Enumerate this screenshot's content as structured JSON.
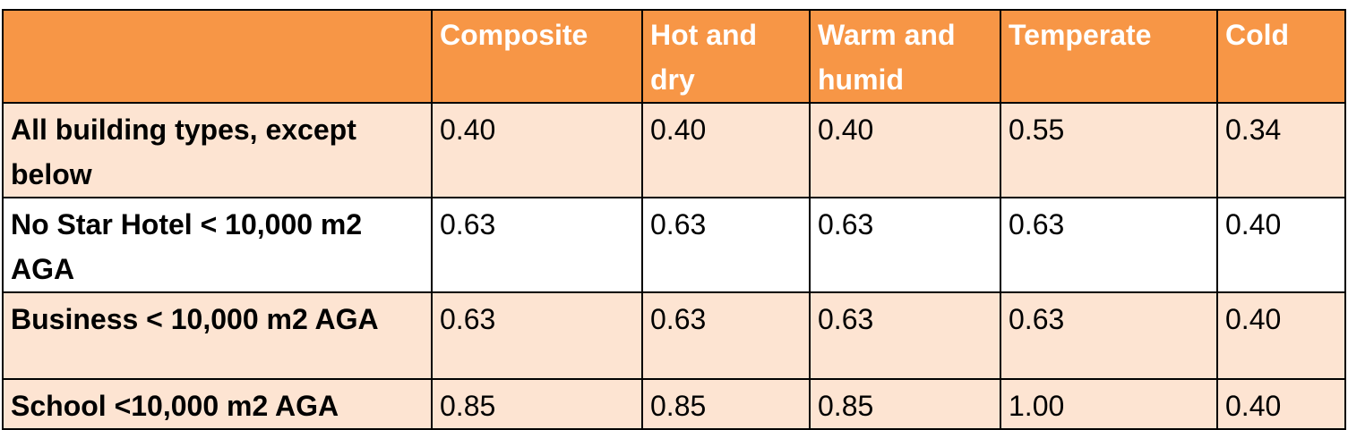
{
  "table": {
    "columns": [
      "",
      "Composite",
      "Hot and dry",
      "Warm and humid",
      "Temperate",
      "Cold"
    ],
    "rows": [
      {
        "label": "All building types, except below",
        "values": [
          "0.40",
          "0.40",
          "0.40",
          "0.55",
          "0.34"
        ]
      },
      {
        "label": "No Star Hotel < 10,000 m2 AGA",
        "values": [
          "0.63",
          "0.63",
          "0.63",
          "0.63",
          "0.40"
        ]
      },
      {
        "label": "Business < 10,000 m2 AGA",
        "values": [
          "0.63",
          "0.63",
          "0.63",
          "0.63",
          "0.40"
        ]
      },
      {
        "label": "School <10,000 m2 AGA",
        "values": [
          "0.85",
          "0.85",
          "0.85",
          "1.00",
          "0.40"
        ]
      }
    ]
  },
  "colors": {
    "header_bg": "#f79646",
    "header_text": "#ffffff",
    "shaded_row_bg": "#fde4d2",
    "plain_row_bg": "#ffffff",
    "border": "#000000"
  }
}
